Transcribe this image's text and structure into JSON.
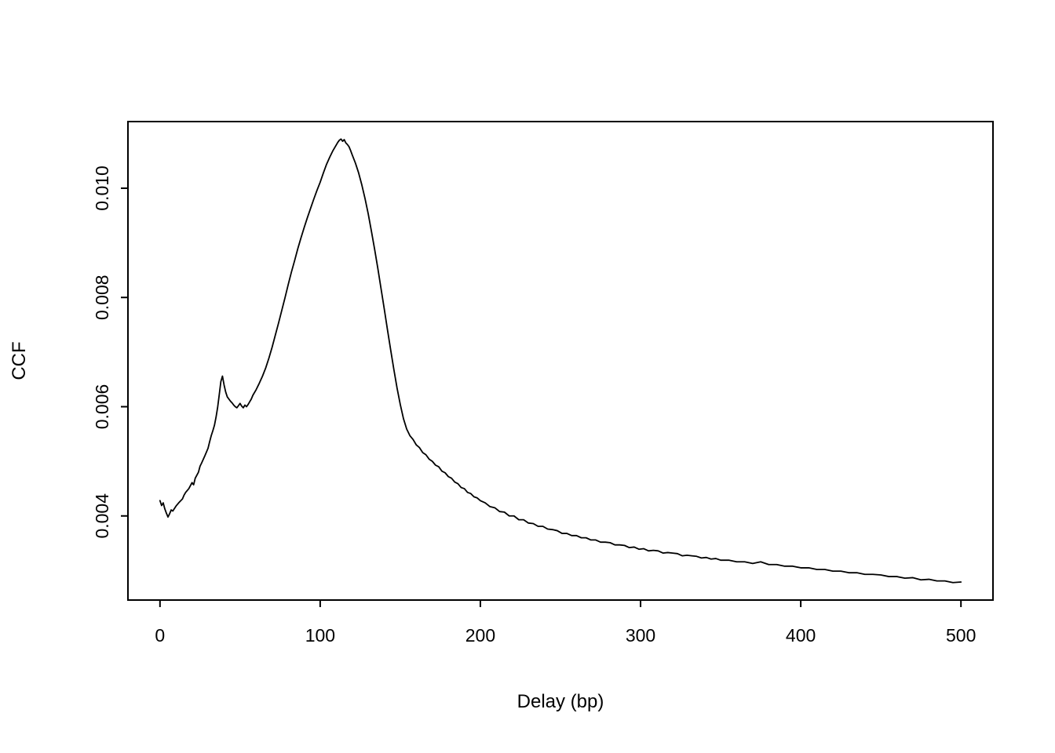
{
  "figure": {
    "background": "#ffffff",
    "foreground": "#000000"
  },
  "chart_data": {
    "type": "line",
    "title": "",
    "xlabel": "Delay (bp)",
    "ylabel": "CCF",
    "xlim": [
      -20,
      520
    ],
    "ylim": [
      0.00246,
      0.01122
    ],
    "x_ticks": [
      0,
      100,
      200,
      300,
      400,
      500
    ],
    "x_tick_labels": [
      "0",
      "100",
      "200",
      "300",
      "400",
      "500"
    ],
    "y_ticks": [
      0.004,
      0.006,
      0.008,
      0.01
    ],
    "y_tick_labels": [
      "0.004",
      "0.006",
      "0.008",
      "0.010"
    ],
    "grid": false,
    "legend": null,
    "line_color": "#000000",
    "series": [
      {
        "name": "CCF",
        "points": [
          [
            0,
            0.00428
          ],
          [
            1,
            0.00419
          ],
          [
            2,
            0.00424
          ],
          [
            3,
            0.00413
          ],
          [
            4,
            0.00405
          ],
          [
            5,
            0.00398
          ],
          [
            6,
            0.00404
          ],
          [
            7,
            0.00411
          ],
          [
            8,
            0.00409
          ],
          [
            10,
            0.00418
          ],
          [
            12,
            0.00425
          ],
          [
            14,
            0.00431
          ],
          [
            15,
            0.00438
          ],
          [
            16,
            0.00443
          ],
          [
            18,
            0.0045
          ],
          [
            20,
            0.00461
          ],
          [
            21,
            0.00457
          ],
          [
            22,
            0.00469
          ],
          [
            24,
            0.0048
          ],
          [
            25,
            0.00491
          ],
          [
            26,
            0.00497
          ],
          [
            28,
            0.0051
          ],
          [
            29,
            0.00517
          ],
          [
            30,
            0.00524
          ],
          [
            31,
            0.00536
          ],
          [
            32,
            0.00547
          ],
          [
            33,
            0.00556
          ],
          [
            34,
            0.00566
          ],
          [
            35,
            0.00581
          ],
          [
            36,
            0.00599
          ],
          [
            37,
            0.00622
          ],
          [
            38,
            0.00646
          ],
          [
            39,
            0.00656
          ],
          [
            40,
            0.0064
          ],
          [
            41,
            0.00627
          ],
          [
            42,
            0.00618
          ],
          [
            43,
            0.00614
          ],
          [
            44,
            0.0061
          ],
          [
            45,
            0.00607
          ],
          [
            46,
            0.00603
          ],
          [
            47,
            0.006
          ],
          [
            48,
            0.00598
          ],
          [
            49,
            0.00602
          ],
          [
            50,
            0.00606
          ],
          [
            51,
            0.00601
          ],
          [
            52,
            0.00598
          ],
          [
            53,
            0.00603
          ],
          [
            54,
            0.006
          ],
          [
            55,
            0.00604
          ],
          [
            56,
            0.00609
          ],
          [
            57,
            0.00614
          ],
          [
            58,
            0.00621
          ],
          [
            60,
            0.00631
          ],
          [
            62,
            0.00643
          ],
          [
            64,
            0.00656
          ],
          [
            66,
            0.00671
          ],
          [
            68,
            0.00689
          ],
          [
            70,
            0.00709
          ],
          [
            72,
            0.00731
          ],
          [
            74,
            0.00753
          ],
          [
            76,
            0.00776
          ],
          [
            78,
            0.00799
          ],
          [
            80,
            0.00823
          ],
          [
            82,
            0.00846
          ],
          [
            84,
            0.00867
          ],
          [
            86,
            0.00889
          ],
          [
            88,
            0.00909
          ],
          [
            90,
            0.00928
          ],
          [
            92,
            0.00946
          ],
          [
            94,
            0.00963
          ],
          [
            96,
            0.0098
          ],
          [
            98,
            0.00996
          ],
          [
            100,
            0.01011
          ],
          [
            102,
            0.01028
          ],
          [
            104,
            0.01044
          ],
          [
            106,
            0.01057
          ],
          [
            108,
            0.01069
          ],
          [
            110,
            0.01079
          ],
          [
            111,
            0.01084
          ],
          [
            112,
            0.01088
          ],
          [
            113,
            0.0109
          ],
          [
            114,
            0.01086
          ],
          [
            115,
            0.01089
          ],
          [
            116,
            0.01083
          ],
          [
            117,
            0.0108
          ],
          [
            118,
            0.01076
          ],
          [
            119,
            0.01069
          ],
          [
            120,
            0.01061
          ],
          [
            122,
            0.01046
          ],
          [
            124,
            0.01028
          ],
          [
            126,
            0.01006
          ],
          [
            128,
            0.00981
          ],
          [
            130,
            0.00953
          ],
          [
            132,
            0.00921
          ],
          [
            134,
            0.00888
          ],
          [
            136,
            0.00853
          ],
          [
            138,
            0.00816
          ],
          [
            140,
            0.00779
          ],
          [
            142,
            0.00741
          ],
          [
            144,
            0.00704
          ],
          [
            146,
            0.00668
          ],
          [
            148,
            0.00634
          ],
          [
            150,
            0.00604
          ],
          [
            152,
            0.00578
          ],
          [
            154,
            0.00559
          ],
          [
            156,
            0.00547
          ],
          [
            158,
            0.0054
          ],
          [
            160,
            0.0053
          ],
          [
            162,
            0.00525
          ],
          [
            164,
            0.00516
          ],
          [
            166,
            0.00512
          ],
          [
            168,
            0.00504
          ],
          [
            170,
            0.005
          ],
          [
            172,
            0.00493
          ],
          [
            174,
            0.0049
          ],
          [
            176,
            0.00482
          ],
          [
            178,
            0.00479
          ],
          [
            180,
            0.00472
          ],
          [
            182,
            0.00469
          ],
          [
            184,
            0.00462
          ],
          [
            186,
            0.00459
          ],
          [
            188,
            0.00452
          ],
          [
            190,
            0.0045
          ],
          [
            192,
            0.00443
          ],
          [
            194,
            0.00441
          ],
          [
            196,
            0.00435
          ],
          [
            198,
            0.00433
          ],
          [
            200,
            0.00428
          ],
          [
            203,
            0.00424
          ],
          [
            206,
            0.00417
          ],
          [
            209,
            0.00415
          ],
          [
            212,
            0.00408
          ],
          [
            215,
            0.00407
          ],
          [
            218,
            0.004
          ],
          [
            221,
            0.004
          ],
          [
            224,
            0.00393
          ],
          [
            227,
            0.00393
          ],
          [
            230,
            0.00387
          ],
          [
            233,
            0.00386
          ],
          [
            236,
            0.00381
          ],
          [
            239,
            0.00381
          ],
          [
            242,
            0.00376
          ],
          [
            245,
            0.00375
          ],
          [
            248,
            0.00373
          ],
          [
            251,
            0.00368
          ],
          [
            254,
            0.00368
          ],
          [
            257,
            0.00364
          ],
          [
            260,
            0.00364
          ],
          [
            263,
            0.0036
          ],
          [
            266,
            0.0036
          ],
          [
            269,
            0.00356
          ],
          [
            272,
            0.00356
          ],
          [
            275,
            0.00352
          ],
          [
            278,
            0.00352
          ],
          [
            281,
            0.00351
          ],
          [
            284,
            0.00347
          ],
          [
            287,
            0.00347
          ],
          [
            290,
            0.00346
          ],
          [
            293,
            0.00342
          ],
          [
            296,
            0.00343
          ],
          [
            299,
            0.00339
          ],
          [
            302,
            0.0034
          ],
          [
            305,
            0.00336
          ],
          [
            308,
            0.00337
          ],
          [
            311,
            0.00336
          ],
          [
            314,
            0.00332
          ],
          [
            317,
            0.00333
          ],
          [
            320,
            0.00332
          ],
          [
            323,
            0.00331
          ],
          [
            326,
            0.00327
          ],
          [
            329,
            0.00328
          ],
          [
            332,
            0.00327
          ],
          [
            335,
            0.00326
          ],
          [
            338,
            0.00323
          ],
          [
            341,
            0.00324
          ],
          [
            344,
            0.00321
          ],
          [
            347,
            0.00322
          ],
          [
            350,
            0.00319
          ],
          [
            355,
            0.00319
          ],
          [
            360,
            0.00316
          ],
          [
            365,
            0.00316
          ],
          [
            370,
            0.00313
          ],
          [
            375,
            0.00316
          ],
          [
            380,
            0.00311
          ],
          [
            385,
            0.00311
          ],
          [
            390,
            0.00308
          ],
          [
            395,
            0.00308
          ],
          [
            400,
            0.00305
          ],
          [
            405,
            0.00305
          ],
          [
            410,
            0.00302
          ],
          [
            415,
            0.00302
          ],
          [
            420,
            0.00299
          ],
          [
            425,
            0.00299
          ],
          [
            430,
            0.00296
          ],
          [
            435,
            0.00296
          ],
          [
            440,
            0.00293
          ],
          [
            445,
            0.00293
          ],
          [
            450,
            0.00292
          ],
          [
            455,
            0.00289
          ],
          [
            460,
            0.00289
          ],
          [
            465,
            0.00286
          ],
          [
            470,
            0.00287
          ],
          [
            475,
            0.00283
          ],
          [
            480,
            0.00284
          ],
          [
            485,
            0.00281
          ],
          [
            490,
            0.00281
          ],
          [
            495,
            0.00278
          ],
          [
            500,
            0.00279
          ]
        ]
      }
    ]
  }
}
